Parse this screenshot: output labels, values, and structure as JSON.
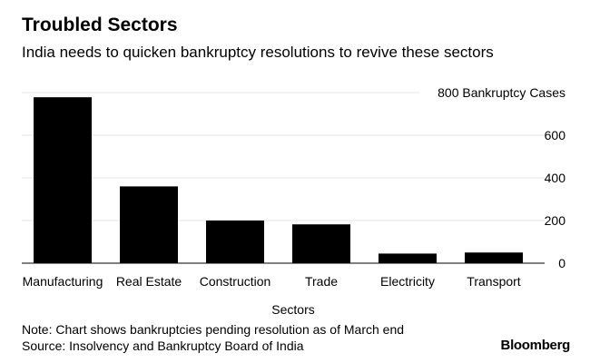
{
  "title": "Troubled Sectors",
  "subtitle": "India needs to quicken bankruptcy resolutions to revive these sectors",
  "chart_data": {
    "type": "bar",
    "categories": [
      "Manufacturing",
      "Real Estate",
      "Construction",
      "Trade",
      "Electricity",
      "Transport"
    ],
    "values": [
      778,
      360,
      200,
      182,
      45,
      50
    ],
    "ylim": [
      0,
      800
    ],
    "yticks": [
      0,
      200,
      400,
      600
    ],
    "top_tick_label": "800 Bankruptcy Cases",
    "xlabel": "Sectors",
    "ylabel": "",
    "grid": true,
    "bar_color": "#000000",
    "grid_color": "#e5e5e5"
  },
  "notes": {
    "note": "Note: Chart shows bankruptcies pending resolution as of March end",
    "source": "Source: Insolvency and Bankruptcy Board of India"
  },
  "brand": "Bloomberg"
}
